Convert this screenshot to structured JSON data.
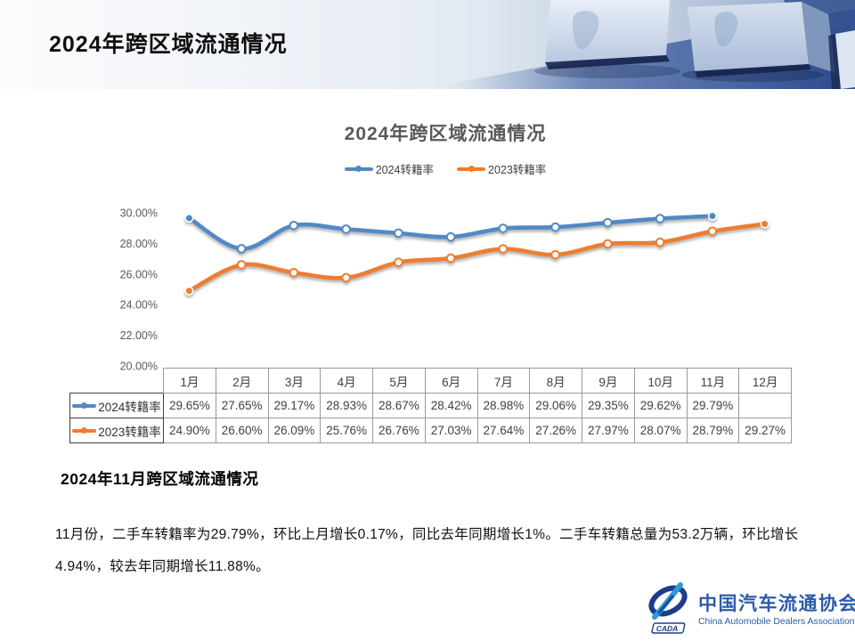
{
  "slide": {
    "title": "2024年跨区域流通情况",
    "section_heading": "2024年11月跨区域流通情况",
    "body_paragraph": "11月份，二手车转籍率为29.79%，环比上月增长0.17%，同比去年同期增长1%。二手车转籍总量为53.2万辆，环比增长4.94%，较去年同期增长11.88%。"
  },
  "chart_data": {
    "type": "line",
    "title": "2024年跨区域流通情况",
    "categories": [
      "1月",
      "2月",
      "3月",
      "4月",
      "5月",
      "6月",
      "7月",
      "8月",
      "9月",
      "10月",
      "11月",
      "12月"
    ],
    "series": [
      {
        "name": "2024转籍率",
        "color": "#5189C5",
        "values": [
          29.65,
          27.65,
          29.17,
          28.93,
          28.67,
          28.42,
          28.98,
          29.06,
          29.35,
          29.62,
          29.79,
          null
        ]
      },
      {
        "name": "2023转籍率",
        "color": "#ED7D31",
        "values": [
          24.9,
          26.6,
          26.09,
          25.76,
          26.76,
          27.03,
          27.64,
          27.26,
          27.97,
          28.07,
          28.79,
          29.27
        ]
      }
    ],
    "y_axis": {
      "min": 20,
      "max": 30,
      "step": 2,
      "tick_decimals": 2,
      "tick_suffix": "%"
    },
    "value_decimals": 2,
    "value_suffix": "%",
    "grid": false,
    "legend_position": "top",
    "smooth": true
  },
  "logo": {
    "mark_text": "CADA",
    "name_zh": "中国汽车流通协会",
    "name_en": "China Automobile Dealers Association",
    "color_primary": "#1E3B8F",
    "color_accent": "#2D9BD8"
  }
}
